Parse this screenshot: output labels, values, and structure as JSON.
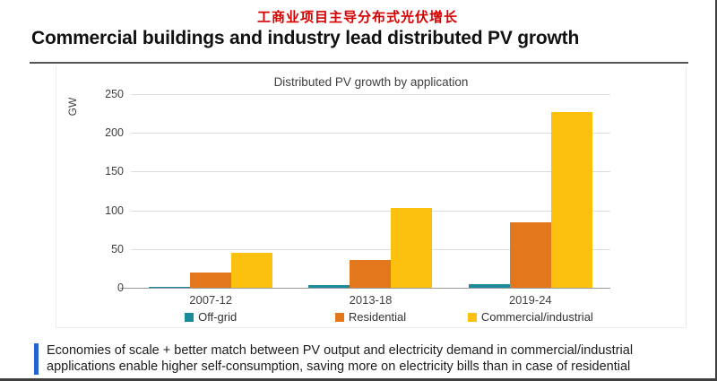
{
  "page": {
    "cn_title": "工商业项目主导分布式光伏增长",
    "heading": "Commercial buildings and industry lead distributed PV growth",
    "footnote_line1": "Economies of scale + better match between PV output and electricity demand in commercial/industrial",
    "footnote_line2": "applications enable higher self-consumption, saving more on electricity bills than in case of residential"
  },
  "colors": {
    "cn_title_red": "#d40000",
    "accent_blue": "#2563d6",
    "offgrid_teal": "#1b8a9a",
    "residential_orange": "#e2771c",
    "commercial_yellow": "#fcc00e",
    "gridline_gray": "#dcdcdc",
    "axis_gray": "#9a9a9a"
  },
  "chart_data": {
    "type": "bar",
    "title": "Distributed PV growth by application",
    "ylabel": "GW",
    "xlabel": "",
    "categories": [
      "2007-12",
      "2013-18",
      "2019-24"
    ],
    "series": [
      {
        "name": "Off-grid",
        "color": "#1b8a9a",
        "values": [
          1,
          3,
          5
        ]
      },
      {
        "name": "Residential",
        "color": "#e2771c",
        "values": [
          20,
          36,
          85
        ]
      },
      {
        "name": "Commercial/industrial",
        "color": "#fcc00e",
        "values": [
          45,
          103,
          227
        ]
      }
    ],
    "yticks": [
      0,
      50,
      100,
      150,
      200,
      250
    ],
    "ylim": [
      0,
      250
    ],
    "grid": true,
    "legend_position": "bottom"
  }
}
